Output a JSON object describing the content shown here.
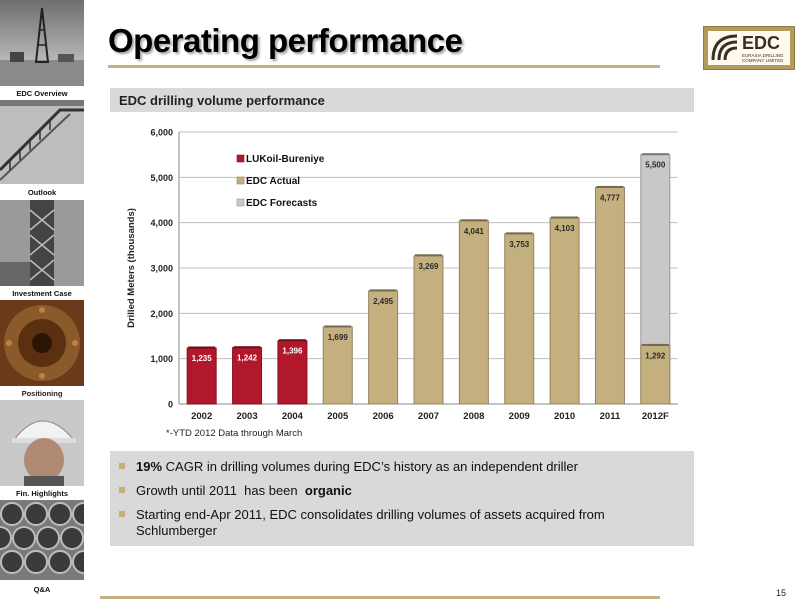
{
  "sidebar": {
    "items": [
      {
        "label": "EDC Overview",
        "image": "drilling-rig-photo"
      },
      {
        "label": "Outlook",
        "image": "rig-stairs-photo"
      },
      {
        "label": "Investment Case",
        "image": "rig-tower-photo"
      },
      {
        "label": "Positioning",
        "image": "pipe-flange-photo"
      },
      {
        "label": "Fin. Highlights",
        "image": "worker-helmet-photo"
      },
      {
        "label": "Q&A",
        "image": "pipes-stack-photo"
      }
    ]
  },
  "header": {
    "title": "Operating performance",
    "logo_text": "EDC",
    "logo_subtitle": [
      "EURASIA DRILLING",
      "COMPANY LIMITED"
    ]
  },
  "section": {
    "title": "EDC drilling volume performance"
  },
  "chart_data": {
    "type": "bar",
    "ylabel": "Drilled Meters (thousands)",
    "xlabel": "",
    "ylim": [
      0,
      6000
    ],
    "yticks": [
      "0",
      "1,000",
      "2,000",
      "3,000",
      "4,000",
      "5,000",
      "6,000"
    ],
    "categories": [
      "2002",
      "2003",
      "2004",
      "2005",
      "2006",
      "2007",
      "2008",
      "2009",
      "2010",
      "2011",
      "2012F"
    ],
    "series": [
      {
        "name": "LUKoil-Bureniye",
        "color": "#b2182b",
        "values": [
          1235,
          1242,
          1396,
          null,
          null,
          null,
          null,
          null,
          null,
          null,
          null
        ],
        "labels": [
          "1,235",
          "1,242",
          "1,396",
          "",
          "",
          "",
          "",
          "",
          "",
          "",
          ""
        ]
      },
      {
        "name": "EDC Actual",
        "color": "#c4b07f",
        "values": [
          null,
          null,
          null,
          1699,
          2495,
          3269,
          4041,
          3753,
          4103,
          4777,
          1292
        ],
        "labels": [
          "",
          "",
          "",
          "1,699",
          "2,495",
          "3,269",
          "4,041",
          "3,753",
          "4,103",
          "4,777",
          "1,292"
        ]
      },
      {
        "name": "EDC Forecasts",
        "color": "#c8c8c8",
        "values": [
          null,
          null,
          null,
          null,
          null,
          null,
          null,
          null,
          null,
          null,
          5500
        ],
        "labels": [
          "",
          "",
          "",
          "",
          "",
          "",
          "",
          "",
          "",
          "",
          "5,500"
        ]
      }
    ],
    "legend_placement": "top-left",
    "grid": true
  },
  "footnote": "*-YTD 2012 Data through March",
  "bullets": [
    {
      "bold_prefix": "19%",
      "text": " CAGR in drilling volumes during EDC’s history as an independent driller",
      "bold_suffix": ""
    },
    {
      "bold_prefix": "",
      "text": "Growth until 2011  has been  ",
      "bold_suffix": "organic"
    },
    {
      "bold_prefix": "",
      "text": "Starting end-Apr 2011, EDC consolidates drilling volumes of assets acquired from Schlumberger",
      "bold_suffix": ""
    }
  ],
  "page_number": "15"
}
